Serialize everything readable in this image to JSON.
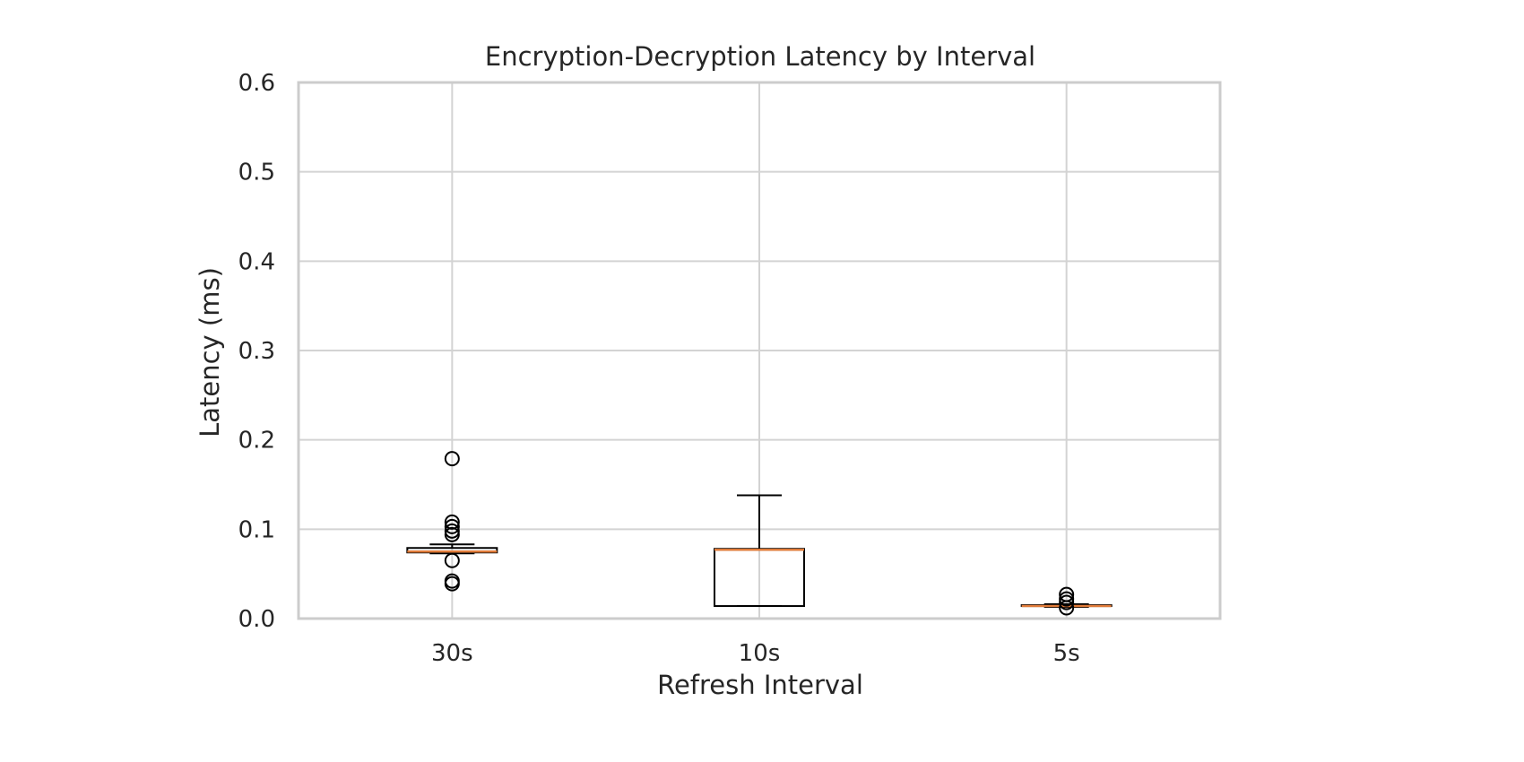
{
  "chart_data": {
    "type": "box",
    "title": "Encryption-Decryption Latency by Interval",
    "xlabel": "Refresh Interval",
    "ylabel": "Latency (ms)",
    "ylim": [
      0,
      0.6
    ],
    "yticks": [
      "0.0",
      "0.1",
      "0.2",
      "0.3",
      "0.4",
      "0.5",
      "0.6"
    ],
    "grid": true,
    "categories": [
      "30s",
      "10s",
      "5s"
    ],
    "boxes": [
      {
        "category": "30s",
        "whisker_low": 0.073,
        "q1": 0.074,
        "median": 0.075,
        "q3": 0.079,
        "whisker_high": 0.083,
        "outliers": [
          0.179,
          0.108,
          0.103,
          0.098,
          0.094,
          0.065,
          0.042,
          0.039
        ]
      },
      {
        "category": "10s",
        "whisker_low": 0.014,
        "q1": 0.014,
        "median": 0.077,
        "q3": 0.078,
        "whisker_high": 0.138,
        "outliers": []
      },
      {
        "category": "5s",
        "whisker_low": 0.013,
        "q1": 0.014,
        "median": 0.014,
        "q3": 0.015,
        "whisker_high": 0.016,
        "outliers": [
          0.027,
          0.022,
          0.018,
          0.012
        ]
      }
    ],
    "colors": {
      "box": "#000000",
      "median": "#e07b39",
      "grid": "#d3d3d3",
      "frame": "#cccccc",
      "text": "#262626"
    }
  }
}
